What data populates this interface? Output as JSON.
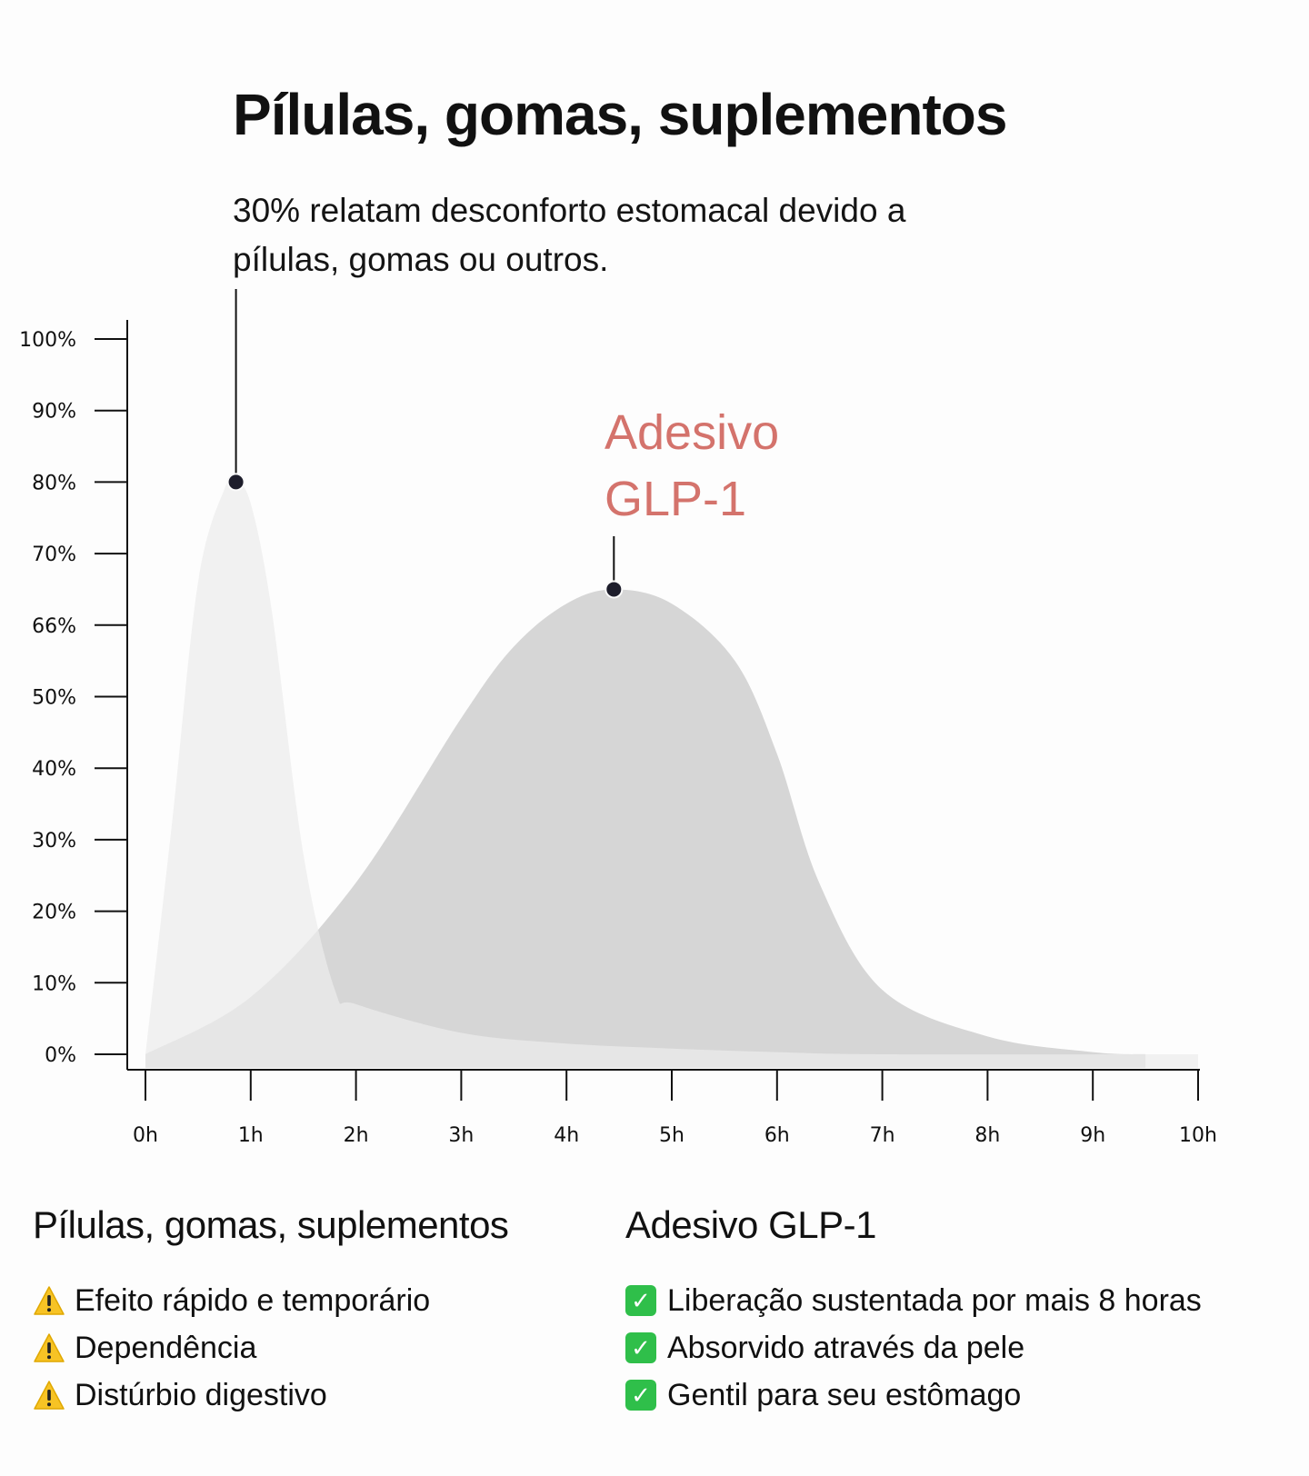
{
  "title": "Pílulas, gomas, suplementos",
  "subtitle": "30% relatam desconforto estomacal devido a pílulas, gomas ou outros.",
  "chart_data": {
    "type": "area",
    "y_ticks": [
      "100%",
      "90%",
      "80%",
      "70%",
      "66%",
      "50%",
      "40%",
      "30%",
      "20%",
      "10%",
      "0%"
    ],
    "x_ticks": [
      "0h",
      "1h",
      "2h",
      "3h",
      "4h",
      "5h",
      "6h",
      "7h",
      "8h",
      "9h",
      "10h"
    ],
    "series": [
      {
        "name": "Pílulas, gomas, suplementos",
        "color": "#ebebeb",
        "points": [
          [
            0,
            0
          ],
          [
            0.25,
            32
          ],
          [
            0.5,
            66
          ],
          [
            0.75,
            79
          ],
          [
            0.86,
            80
          ],
          [
            1.0,
            77
          ],
          [
            1.2,
            62
          ],
          [
            1.5,
            28
          ],
          [
            1.8,
            9
          ],
          [
            2.0,
            7
          ],
          [
            3.0,
            3
          ],
          [
            4.0,
            1.5
          ],
          [
            5.0,
            0.8
          ],
          [
            6.0,
            0.3
          ],
          [
            7.0,
            0
          ],
          [
            10.0,
            0
          ]
        ],
        "peak": {
          "x": 0.86,
          "y": 80
        }
      },
      {
        "name": "Adesivo GLP-1",
        "color": "#d6d6d6",
        "points": [
          [
            0,
            0
          ],
          [
            1.0,
            8
          ],
          [
            2.0,
            24
          ],
          [
            3.0,
            47
          ],
          [
            3.5,
            57
          ],
          [
            4.0,
            63
          ],
          [
            4.45,
            65
          ],
          [
            5.0,
            63
          ],
          [
            5.6,
            55
          ],
          [
            6.0,
            42
          ],
          [
            6.4,
            24
          ],
          [
            7.0,
            9
          ],
          [
            8.0,
            2.5
          ],
          [
            9.0,
            0.3
          ],
          [
            9.5,
            0
          ]
        ],
        "peak": {
          "x": 4.45,
          "y": 65
        }
      }
    ],
    "annotation_label_lines": [
      "Adesivo",
      "GLP-1"
    ],
    "annotation_color": "#d4736c"
  },
  "legend": {
    "left": {
      "title": "Pílulas, gomas, suplementos",
      "items": [
        "Efeito rápido e temporário",
        "Dependência",
        "Distúrbio digestivo"
      ],
      "icon": "warning-icon"
    },
    "right": {
      "title": "Adesivo GLP-1",
      "items": [
        "Liberação sustentada por mais 8 horas",
        "Absorvido através da pele",
        "Gentil para seu estômago"
      ],
      "icon": "check-icon"
    }
  }
}
